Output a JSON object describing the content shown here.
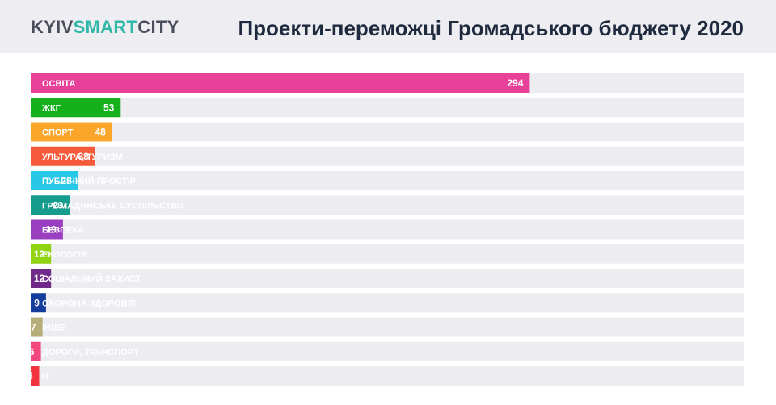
{
  "header": {
    "logo_part1": "KYIV",
    "logo_part2": "SMART",
    "logo_part3": "CITY",
    "title": "Проекти-переможці Громадського бюджету 2020"
  },
  "chart_data": {
    "type": "bar",
    "orientation": "horizontal",
    "categories": [
      "ОСВІТА",
      "ЖКГ",
      "СПОРТ",
      "УЛЬТУРА, ТУРИЗМ",
      "ПУБЛІЧНИЙ ПРОСТІР",
      "ГРОМАДЯНСЬКЕ СУСПІЛЬСТВО",
      "БЕЗПЕКА",
      "ЕКОЛОГІЯ",
      "СОЦІАЛЬНИЙ ЗАХИСТ",
      "ОХОРОНА ЗДОРОВ'Я",
      "ІНШЕ",
      "ДОРОГИ, ТРАНСПОРТ",
      "IT"
    ],
    "values": [
      294,
      53,
      48,
      38,
      28,
      23,
      19,
      12,
      12,
      9,
      7,
      6,
      5
    ],
    "colors": [
      "#e8419a",
      "#16b01c",
      "#fba52a",
      "#f55b3a",
      "#27c7e8",
      "#169c8c",
      "#9a3fbf",
      "#8fd312",
      "#702a8a",
      "#143d9c",
      "#b5ae78",
      "#f1467e",
      "#f0333c"
    ],
    "track_color": "#ededf1",
    "xlim": [
      0,
      420
    ],
    "grid": false,
    "title": "Проекти-переможці Громадського бюджету 2020"
  }
}
